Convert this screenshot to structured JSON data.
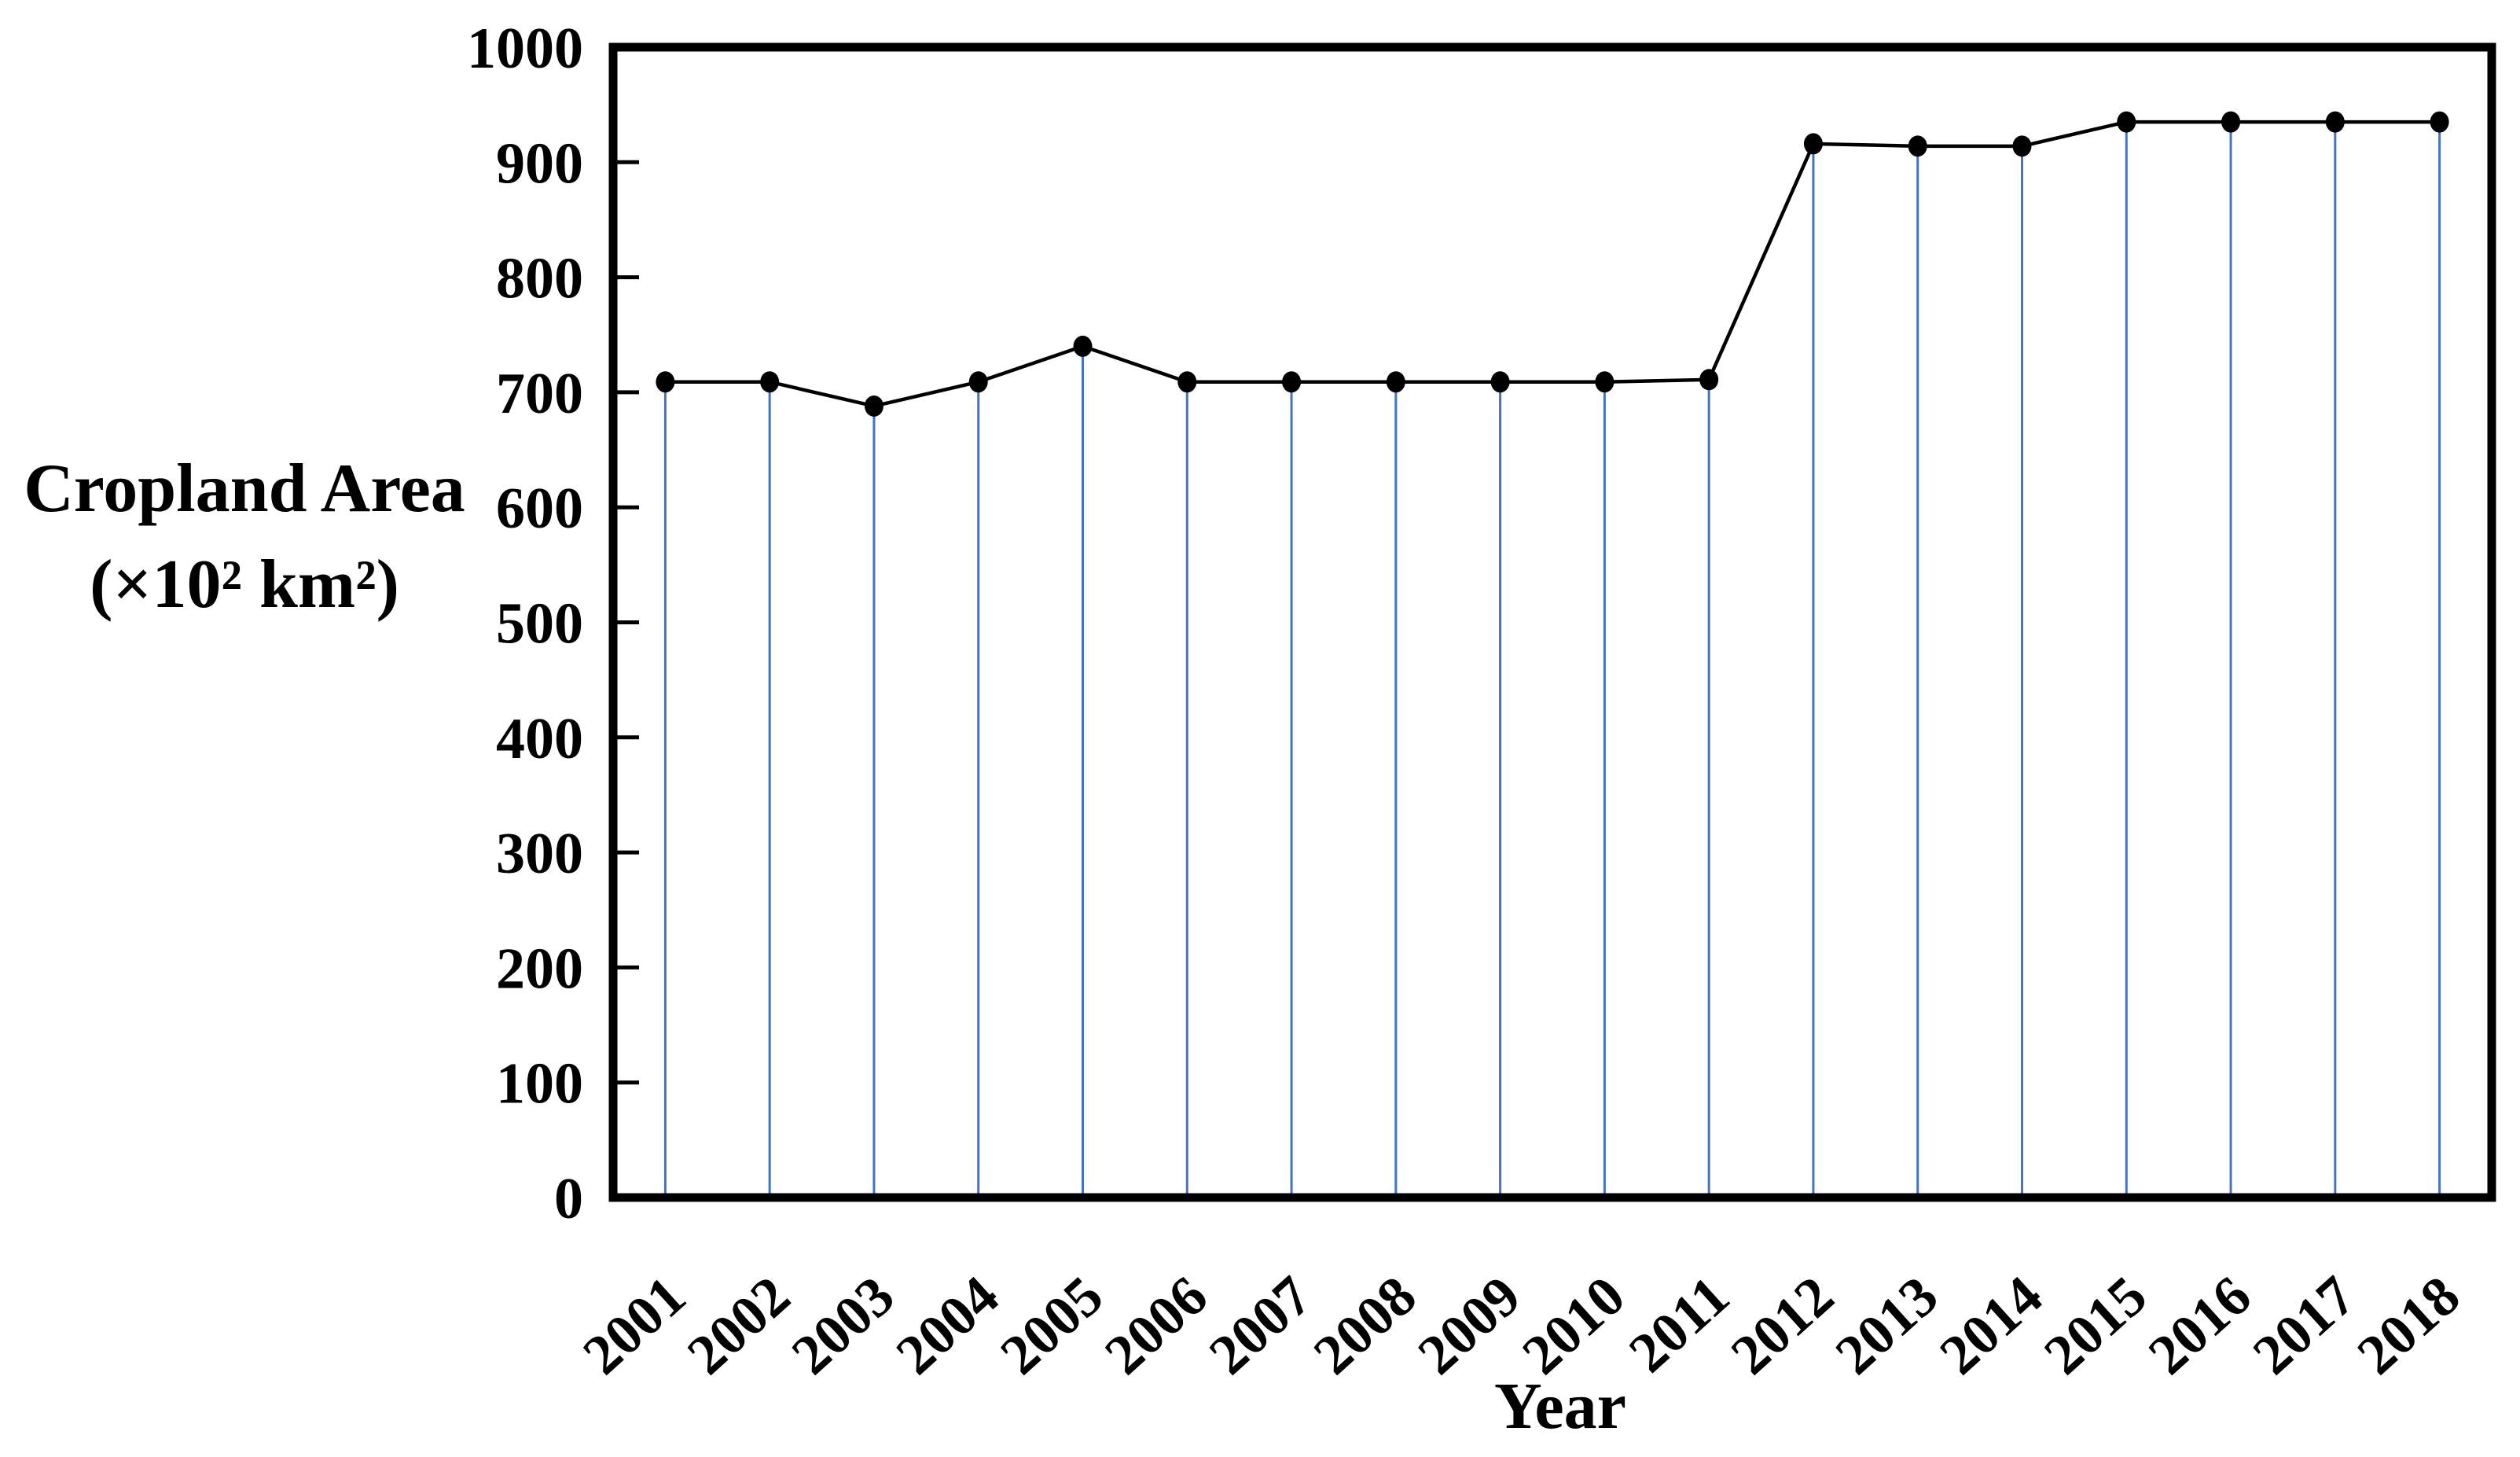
{
  "chart_data": {
    "type": "line",
    "subtype": "stem-lollipop",
    "title": "",
    "xlabel": "Year",
    "ylabel_line1": "Cropland Area",
    "ylabel_line2": "(×10² km²)",
    "categories": [
      "2001",
      "2002",
      "2003",
      "2004",
      "2005",
      "2006",
      "2007",
      "2008",
      "2009",
      "2010",
      "2011",
      "2012",
      "2013",
      "2014",
      "2015",
      "2016",
      "2017",
      "2018"
    ],
    "series": [
      {
        "name": "Cropland Area",
        "values": [
          709,
          709,
          688,
          709,
          740,
          709,
          709,
          709,
          709,
          709,
          711,
          916,
          914,
          914,
          935,
          935,
          935,
          935
        ]
      }
    ],
    "ylim": [
      0,
      1000
    ],
    "yticks": [
      0,
      100,
      200,
      300,
      400,
      500,
      600,
      700,
      800,
      900,
      1000
    ],
    "grid": false,
    "legend": "none",
    "marker": "filled-circle",
    "colors": {
      "stem": "#4472C4",
      "line": "#000000",
      "marker": "#000000",
      "text": "#000000",
      "frame": "#000000",
      "background": "#FFFFFF"
    }
  }
}
